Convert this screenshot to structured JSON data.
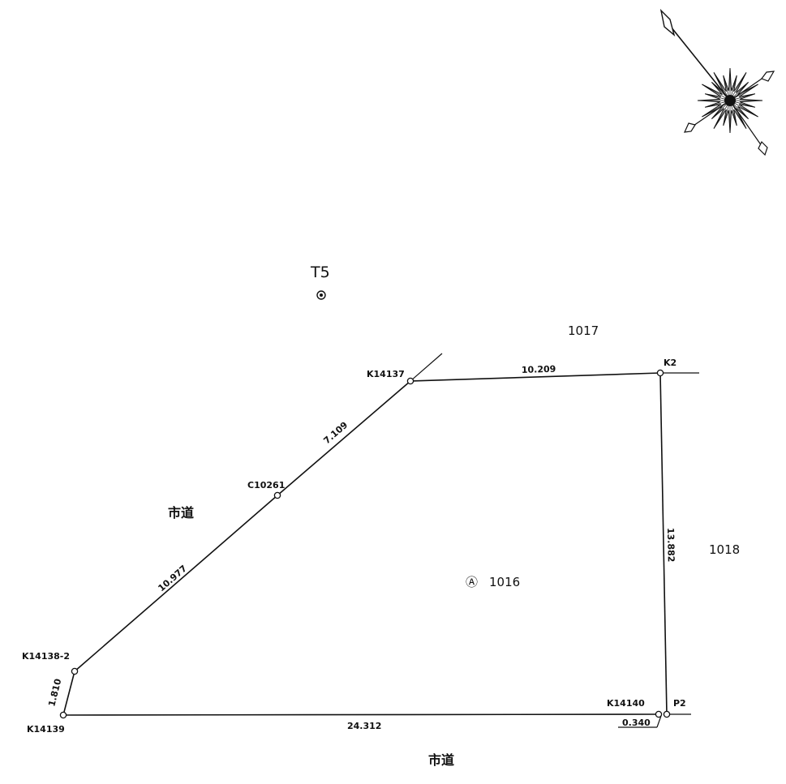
{
  "station": {
    "label": "T5"
  },
  "points": {
    "k14137": "K14137",
    "k2": "K2",
    "c10261": "C10261",
    "k14138_2": "K14138-2",
    "k14139": "K14139",
    "k14140": "K14140",
    "p2": "P2"
  },
  "distances": {
    "k14137_k2": "10.209",
    "c10261_k14137": "7.109",
    "k14138_c10261": "10.977",
    "k14139_k14138": "1.810",
    "k14139_k14140": "24.312",
    "k2_k14140": "13.882",
    "k14140_p2": "0.340"
  },
  "parcels": {
    "subject_symbol": "Ⓐ",
    "subject": "1016",
    "north": "1017",
    "east": "1018"
  },
  "roads": {
    "west": "市道",
    "south": "市道"
  },
  "icons": {
    "compass": "compass-rose-icon",
    "station": "control-station-icon",
    "boundary_point": "boundary-marker-icon"
  }
}
